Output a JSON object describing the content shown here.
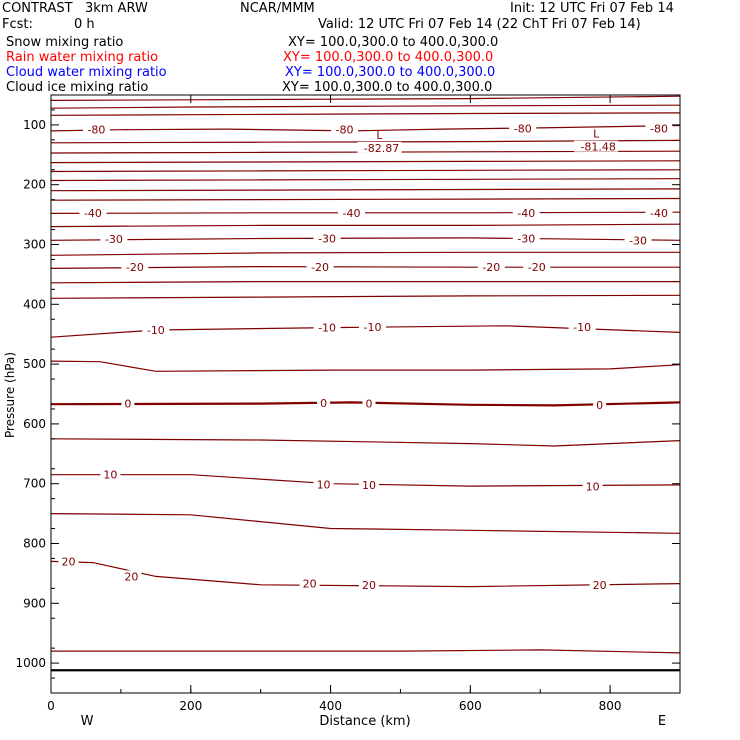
{
  "header": {
    "model": "CONTRAST   3km ARW",
    "center": "NCAR/MMM",
    "init": "Init: 12 UTC Fri 07 Feb 14",
    "fcst_label": "Fcst:",
    "fcst_value": "0 h",
    "valid": "Valid: 12 UTC Fri 07 Feb 14 (22 ChT Fri 07 Feb 14)"
  },
  "fields": [
    {
      "name": "Snow mixing ratio",
      "xy": "XY= 100.0,300.0 to 400.0,300.0",
      "color": "#000000"
    },
    {
      "name": "Rain water mixing ratio",
      "xy": "XY= 100.0,300.0 to 400.0,300.0",
      "color": "#ff0000"
    },
    {
      "name": "Cloud water mixing ratio",
      "xy": "XY= 100.0,300.0 to 400.0,300.0",
      "color": "#0000ff"
    },
    {
      "name": "Cloud ice mixing ratio",
      "xy": "XY= 100.0,300.0 to 400.0,300.0",
      "color": "#000000"
    }
  ],
  "chart_data": {
    "type": "contour",
    "xlabel": "Distance (km)",
    "ylabel": "Pressure (hPa)",
    "xlim": [
      0,
      900
    ],
    "ylim": [
      1050,
      50
    ],
    "x_ticks": [
      "0",
      "200",
      "400",
      "600",
      "800"
    ],
    "x_tick_values": [
      0,
      200,
      400,
      600,
      800
    ],
    "y_ticks": [
      "100",
      "200",
      "300",
      "400",
      "500",
      "600",
      "700",
      "800",
      "900",
      "1000"
    ],
    "y_tick_values": [
      100,
      200,
      300,
      400,
      500,
      600,
      700,
      800,
      900,
      1000
    ],
    "x_end_labels": {
      "left": "W",
      "right": "E"
    },
    "contour_color": "#800000",
    "contours": [
      {
        "points": [
          [
            0,
            59
          ],
          [
            200,
            58
          ],
          [
            400,
            57
          ],
          [
            600,
            56
          ],
          [
            900,
            52
          ]
        ]
      },
      {
        "points": [
          [
            0,
            72
          ],
          [
            200,
            70
          ],
          [
            400,
            69
          ],
          [
            600,
            68
          ],
          [
            900,
            67
          ]
        ]
      },
      {
        "points": [
          [
            0,
            84
          ],
          [
            200,
            83
          ],
          [
            400,
            82
          ],
          [
            600,
            81
          ],
          [
            900,
            80
          ]
        ]
      },
      {
        "points": [
          [
            0,
            110
          ],
          [
            100,
            108
          ],
          [
            250,
            107
          ],
          [
            430,
            110
          ],
          [
            560,
            107
          ],
          [
            700,
            105
          ],
          [
            900,
            101
          ]
        ],
        "level": "-80",
        "labels": [
          [
            65,
            108
          ],
          [
            420,
            108
          ],
          [
            675,
            106
          ],
          [
            870,
            106
          ]
        ]
      },
      {
        "points": [
          [
            0,
            130
          ],
          [
            300,
            129
          ],
          [
            600,
            128
          ],
          [
            900,
            126
          ]
        ]
      },
      {
        "points": [
          [
            0,
            147
          ],
          [
            300,
            146
          ],
          [
            600,
            145
          ],
          [
            900,
            144
          ]
        ]
      },
      {
        "points": [
          [
            0,
            163
          ],
          [
            300,
            162
          ],
          [
            600,
            161
          ],
          [
            900,
            160
          ]
        ]
      },
      {
        "points": [
          [
            0,
            178
          ],
          [
            300,
            177
          ],
          [
            600,
            176
          ],
          [
            900,
            175
          ]
        ]
      },
      {
        "points": [
          [
            0,
            193
          ],
          [
            300,
            192
          ],
          [
            600,
            191
          ],
          [
            900,
            190
          ]
        ]
      },
      {
        "points": [
          [
            0,
            210
          ],
          [
            300,
            209
          ],
          [
            600,
            208
          ],
          [
            900,
            207
          ]
        ]
      },
      {
        "points": [
          [
            0,
            226
          ],
          [
            300,
            225
          ],
          [
            600,
            224
          ],
          [
            900,
            223
          ]
        ]
      },
      {
        "points": [
          [
            0,
            248
          ],
          [
            300,
            247
          ],
          [
            600,
            247
          ],
          [
            900,
            246
          ]
        ],
        "level": "-40",
        "labels": [
          [
            60,
            247
          ],
          [
            430,
            247
          ],
          [
            680,
            247
          ],
          [
            870,
            247
          ]
        ]
      },
      {
        "points": [
          [
            0,
            270
          ],
          [
            300,
            268
          ],
          [
            600,
            268
          ],
          [
            900,
            266
          ]
        ]
      },
      {
        "points": [
          [
            0,
            293
          ],
          [
            300,
            290
          ],
          [
            600,
            289
          ],
          [
            900,
            293
          ]
        ],
        "level": "-30",
        "labels": [
          [
            90,
            291
          ],
          [
            395,
            290
          ],
          [
            680,
            290
          ],
          [
            840,
            293
          ]
        ]
      },
      {
        "points": [
          [
            0,
            318
          ],
          [
            300,
            314
          ],
          [
            600,
            313
          ],
          [
            900,
            313
          ]
        ]
      },
      {
        "points": [
          [
            0,
            340
          ],
          [
            300,
            337
          ],
          [
            600,
            338
          ],
          [
            900,
            338
          ]
        ],
        "level": "-20",
        "labels": [
          [
            120,
            338
          ],
          [
            385,
            338
          ],
          [
            630,
            338
          ],
          [
            695,
            338
          ]
        ]
      },
      {
        "points": [
          [
            0,
            364
          ],
          [
            300,
            362
          ],
          [
            600,
            362
          ],
          [
            900,
            362
          ]
        ]
      },
      {
        "points": [
          [
            0,
            390
          ],
          [
            300,
            388
          ],
          [
            600,
            386
          ],
          [
            900,
            385
          ]
        ]
      },
      {
        "points": [
          [
            0,
            455
          ],
          [
            150,
            443
          ],
          [
            400,
            439
          ],
          [
            650,
            436
          ],
          [
            900,
            447
          ]
        ],
        "level": "-10",
        "labels": [
          [
            150,
            443
          ],
          [
            395,
            439
          ],
          [
            460,
            438
          ],
          [
            760,
            438
          ]
        ]
      },
      {
        "points": [
          [
            0,
            495
          ],
          [
            70,
            496
          ],
          [
            150,
            512
          ],
          [
            400,
            510
          ],
          [
            600,
            510
          ],
          [
            800,
            508
          ],
          [
            900,
            501
          ]
        ]
      },
      {
        "points": [
          [
            0,
            567
          ],
          [
            300,
            566
          ],
          [
            430,
            564
          ],
          [
            600,
            568
          ],
          [
            720,
            569
          ],
          [
            900,
            564
          ]
        ],
        "level": "0",
        "labels": [
          [
            110,
            566
          ],
          [
            390,
            565
          ],
          [
            455,
            566
          ],
          [
            785,
            568
          ]
        ]
      },
      {
        "points": [
          [
            0,
            625
          ],
          [
            300,
            627
          ],
          [
            600,
            633
          ],
          [
            720,
            637
          ],
          [
            900,
            628
          ]
        ]
      },
      {
        "points": [
          [
            0,
            685
          ],
          [
            200,
            685
          ],
          [
            400,
            700
          ],
          [
            600,
            704
          ],
          [
            900,
            702
          ]
        ],
        "level": "10",
        "labels": [
          [
            85,
            685
          ],
          [
            390,
            701
          ],
          [
            455,
            702
          ],
          [
            775,
            705
          ]
        ]
      },
      {
        "points": [
          [
            0,
            750
          ],
          [
            200,
            752
          ],
          [
            400,
            775
          ],
          [
            600,
            778
          ],
          [
            900,
            783
          ]
        ]
      },
      {
        "points": [
          [
            0,
            830
          ],
          [
            60,
            832
          ],
          [
            150,
            855
          ],
          [
            300,
            869
          ],
          [
            600,
            872
          ],
          [
            900,
            867
          ]
        ],
        "level": "20",
        "labels": [
          [
            25,
            830
          ],
          [
            115,
            855
          ],
          [
            370,
            867
          ],
          [
            455,
            869
          ],
          [
            785,
            869
          ]
        ]
      },
      {
        "points": [
          [
            0,
            980
          ],
          [
            200,
            980
          ],
          [
            500,
            980
          ],
          [
            700,
            978
          ],
          [
            900,
            983
          ]
        ]
      }
    ],
    "bold_line": {
      "points": [
        [
          0,
          1012
        ],
        [
          900,
          1012
        ]
      ]
    },
    "extremes": [
      {
        "mark": "L",
        "value": "-82.87",
        "x": 470,
        "p": 95
      },
      {
        "mark": "L",
        "value": "-81.48",
        "x": 780,
        "p": 93
      }
    ]
  }
}
